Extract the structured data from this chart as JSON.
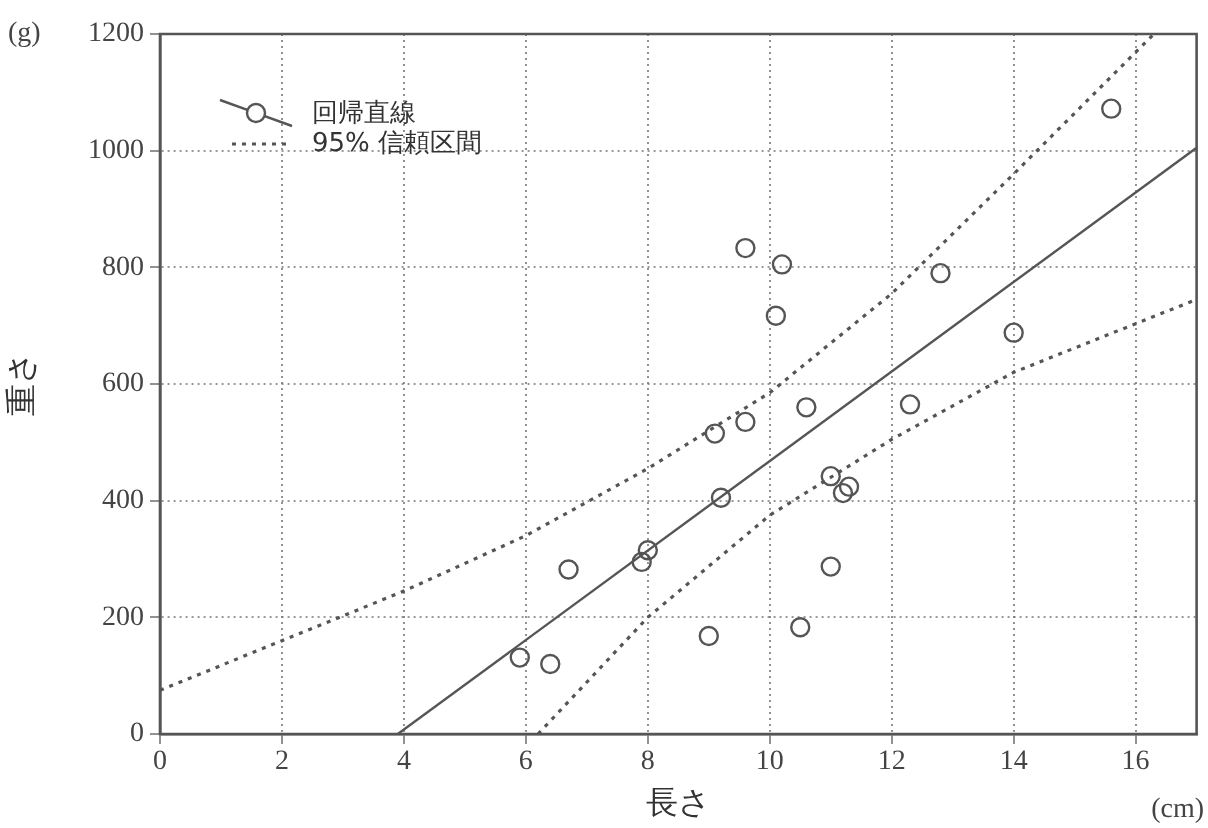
{
  "chart_data": {
    "type": "scatter",
    "xlabel": "長さ",
    "ylabel": "重さ",
    "annotations": [
      "(g)",
      "(cm)"
    ],
    "xlim": [
      0,
      17
    ],
    "ylim": [
      0,
      1200
    ],
    "xticks": [
      0,
      2,
      4,
      6,
      8,
      10,
      12,
      14,
      16
    ],
    "yticks": [
      0,
      200,
      400,
      600,
      800,
      1000,
      1200
    ],
    "grid": true,
    "legend": "top left",
    "series": [
      {
        "type": "scatter",
        "color": "#555555",
        "marker": "circle",
        "x": [
          5.9,
          6.4,
          6.7,
          7.9,
          8.0,
          9.0,
          9.1,
          9.2,
          9.6,
          9.6,
          10.1,
          10.2,
          10.5,
          10.6,
          11.0,
          11.0,
          11.2,
          11.3,
          12.3,
          12.8,
          14.0,
          15.6
        ],
        "values": [
          131,
          120,
          282,
          295,
          315,
          168,
          515,
          405,
          535,
          833,
          717,
          805,
          183,
          560,
          442,
          287,
          413,
          424,
          565,
          790,
          688,
          1072
        ]
      },
      {
        "type": "line",
        "name": "回帰直線",
        "color": "#555555",
        "marker": "none",
        "line_style": "solid",
        "x": [
          3.9,
          17
        ],
        "values": [
          0,
          1005
        ]
      },
      {
        "type": "line",
        "name": "95% 信頼区間",
        "color": "#555555",
        "marker": "none",
        "line_style": "dotted",
        "x": [
          0,
          2,
          4,
          6,
          8,
          10,
          12,
          14,
          16.3
        ],
        "values": [
          75,
          160,
          245,
          340,
          455,
          585,
          755,
          960,
          1200
        ]
      },
      {
        "type": "line",
        "color": "#555555",
        "marker": "none",
        "line_style": "dotted",
        "x": [
          6.2,
          8,
          10,
          12,
          14,
          17
        ],
        "values": [
          0,
          200,
          375,
          505,
          620,
          745
        ]
      }
    ]
  }
}
